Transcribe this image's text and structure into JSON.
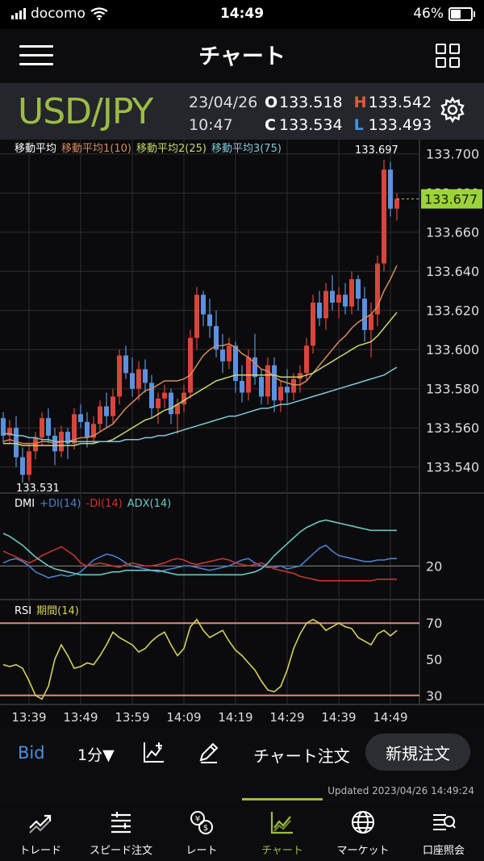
{
  "status_bar": {
    "carrier": "docomo",
    "time": "14:49",
    "battery": "46%",
    "battery_level": 0.46
  },
  "header": {
    "title": "チャート"
  },
  "quote": {
    "pair": "USD/JPY",
    "date": "23/04/26",
    "time": "10:47",
    "open_label": "O",
    "open": "133.518",
    "high_label": "H",
    "high": "133.542",
    "close_label": "C",
    "close": "133.534",
    "low_label": "L",
    "low": "133.493"
  },
  "chart_data": [
    {
      "type": "candlestick",
      "title": "移動平均",
      "legend": [
        "移動平均1(10)",
        "移動平均2(25)",
        "移動平均3(75)"
      ],
      "y_ticks": [
        "133.700",
        "133.680",
        "133.660",
        "133.640",
        "133.620",
        "133.600",
        "133.580",
        "133.560",
        "133.540"
      ],
      "ylim": [
        133.53,
        133.704
      ],
      "current_price": "133.677",
      "max_label": "133.697",
      "min_label": "133.531",
      "x_ticks": [
        "13:39",
        "13:49",
        "13:59",
        "14:09",
        "14:19",
        "14:29",
        "14:39",
        "14:49"
      ],
      "candles": [
        [
          133.565,
          133.568,
          133.552,
          133.556
        ],
        [
          133.556,
          133.564,
          133.552,
          133.56
        ],
        [
          133.56,
          133.566,
          133.54,
          133.545
        ],
        [
          133.545,
          133.55,
          133.532,
          133.536
        ],
        [
          133.536,
          133.552,
          133.533,
          133.548
        ],
        [
          133.548,
          133.558,
          133.544,
          133.555
        ],
        [
          133.555,
          133.568,
          133.551,
          133.565
        ],
        [
          133.565,
          133.57,
          133.552,
          133.556
        ],
        [
          133.556,
          133.56,
          133.541,
          133.548
        ],
        [
          133.548,
          133.561,
          133.545,
          133.558
        ],
        [
          133.558,
          133.56,
          133.544,
          133.552
        ],
        [
          133.552,
          133.57,
          133.549,
          133.567
        ],
        [
          133.567,
          133.572,
          133.56,
          133.563
        ],
        [
          133.563,
          133.568,
          133.55,
          133.555
        ],
        [
          133.555,
          133.566,
          133.552,
          133.562
        ],
        [
          133.562,
          133.574,
          133.558,
          133.571
        ],
        [
          133.571,
          133.578,
          133.56,
          133.566
        ],
        [
          133.566,
          133.58,
          133.562,
          133.576
        ],
        [
          133.576,
          133.6,
          133.572,
          133.597
        ],
        [
          133.597,
          133.602,
          133.585,
          133.588
        ],
        [
          133.588,
          133.596,
          133.576,
          133.58
        ],
        [
          133.58,
          133.594,
          133.574,
          133.59
        ],
        [
          133.59,
          133.595,
          133.578,
          133.583
        ],
        [
          133.583,
          133.587,
          133.565,
          133.57
        ],
        [
          133.57,
          133.578,
          133.562,
          133.575
        ],
        [
          133.575,
          133.582,
          133.57,
          133.578
        ],
        [
          133.578,
          133.58,
          133.562,
          133.567
        ],
        [
          133.567,
          133.575,
          133.557,
          133.572
        ],
        [
          133.572,
          133.582,
          133.568,
          133.578
        ],
        [
          133.578,
          133.61,
          133.575,
          133.606
        ],
        [
          133.606,
          133.632,
          133.6,
          133.628
        ],
        [
          133.628,
          133.63,
          133.612,
          133.618
        ],
        [
          133.618,
          133.626,
          133.606,
          133.612
        ],
        [
          133.612,
          133.62,
          133.596,
          133.6
        ],
        [
          133.6,
          133.608,
          133.588,
          133.594
        ],
        [
          133.594,
          133.606,
          133.59,
          133.602
        ],
        [
          133.602,
          133.604,
          133.578,
          133.584
        ],
        [
          133.584,
          133.592,
          133.573,
          133.578
        ],
        [
          133.578,
          133.6,
          133.574,
          133.596
        ],
        [
          133.596,
          133.608,
          133.582,
          133.586
        ],
        [
          133.586,
          133.59,
          133.572,
          133.576
        ],
        [
          133.576,
          133.596,
          133.572,
          133.592
        ],
        [
          133.592,
          133.596,
          133.568,
          133.574
        ],
        [
          133.574,
          133.584,
          133.568,
          133.581
        ],
        [
          133.581,
          133.59,
          133.572,
          133.578
        ],
        [
          133.578,
          133.588,
          133.574,
          133.585
        ],
        [
          133.585,
          133.592,
          133.578,
          133.588
        ],
        [
          133.588,
          133.606,
          133.584,
          133.602
        ],
        [
          133.602,
          133.628,
          133.598,
          133.624
        ],
        [
          133.624,
          133.63,
          133.612,
          133.616
        ],
        [
          133.616,
          133.634,
          133.61,
          133.63
        ],
        [
          133.63,
          133.638,
          133.62,
          133.624
        ],
        [
          133.624,
          133.632,
          133.616,
          133.628
        ],
        [
          133.628,
          133.634,
          133.618,
          133.622
        ],
        [
          133.622,
          133.64,
          133.618,
          133.636
        ],
        [
          133.636,
          133.638,
          133.62,
          133.626
        ],
        [
          133.626,
          133.632,
          133.604,
          133.61
        ],
        [
          133.61,
          133.624,
          133.596,
          133.618
        ],
        [
          133.618,
          133.648,
          133.612,
          133.644
        ],
        [
          133.644,
          133.697,
          133.64,
          133.692
        ],
        [
          133.692,
          133.696,
          133.668,
          133.672
        ],
        [
          133.672,
          133.68,
          133.666,
          133.677
        ]
      ],
      "ma_series": [
        {
          "name": "移動平均1(10)",
          "color": "#d98a5a",
          "values": [
            133.553,
            133.554,
            133.553,
            133.552,
            133.552,
            133.552,
            133.553,
            133.553,
            133.552,
            133.553,
            133.553,
            133.554,
            133.555,
            133.555,
            133.556,
            133.558,
            133.56,
            133.562,
            133.566,
            133.57,
            133.573,
            133.576,
            133.579,
            133.58,
            133.582,
            133.584,
            133.584,
            133.584,
            133.585,
            133.587,
            133.592,
            133.597,
            133.6,
            133.602,
            133.602,
            133.603,
            133.601,
            133.598,
            133.596,
            133.593,
            133.59,
            133.589,
            133.586,
            133.584,
            133.583,
            133.582,
            133.582,
            133.584,
            133.588,
            133.592,
            133.596,
            133.6,
            133.604,
            133.607,
            133.611,
            133.614,
            133.616,
            133.618,
            133.622,
            133.63,
            133.636,
            133.643
          ]
        },
        {
          "name": "移動平均2(25)",
          "color": "#c7d96a",
          "values": [
            133.552,
            133.552,
            133.552,
            133.551,
            133.551,
            133.551,
            133.551,
            133.551,
            133.551,
            133.551,
            133.551,
            133.551,
            133.552,
            133.552,
            133.552,
            133.553,
            133.553,
            133.554,
            133.556,
            133.558,
            133.56,
            133.562,
            133.564,
            133.565,
            133.567,
            133.569,
            133.57,
            133.572,
            133.574,
            133.576,
            133.578,
            133.58,
            133.582,
            133.584,
            133.585,
            133.586,
            133.587,
            133.587,
            133.587,
            133.587,
            133.587,
            133.587,
            133.587,
            133.586,
            133.586,
            133.586,
            133.586,
            133.587,
            133.588,
            133.59,
            133.592,
            133.594,
            133.596,
            133.598,
            133.6,
            133.602,
            133.603,
            133.604,
            133.607,
            133.611,
            133.615,
            133.619
          ]
        },
        {
          "name": "移動平均3(75)",
          "color": "#7ec8d6",
          "values": [
            133.557,
            133.557,
            133.556,
            133.556,
            133.555,
            133.555,
            133.554,
            133.554,
            133.553,
            133.553,
            133.553,
            133.553,
            133.553,
            133.553,
            133.553,
            133.553,
            133.553,
            133.553,
            133.553,
            133.554,
            133.554,
            133.554,
            133.555,
            133.555,
            133.556,
            133.556,
            133.557,
            133.558,
            133.559,
            133.56,
            133.561,
            133.562,
            133.563,
            133.564,
            133.565,
            133.566,
            133.566,
            133.567,
            133.568,
            133.569,
            133.57,
            133.57,
            133.571,
            133.572,
            133.572,
            133.573,
            133.574,
            133.575,
            133.576,
            133.577,
            133.578,
            133.579,
            133.58,
            133.581,
            133.582,
            133.583,
            133.584,
            133.585,
            133.586,
            133.587,
            133.589,
            133.591
          ]
        }
      ]
    },
    {
      "type": "line",
      "title": "DMI",
      "legend": [
        "+DI(14)",
        "-DI(14)",
        "ADX(14)"
      ],
      "y_ticks": [
        "20"
      ],
      "ylim": [
        0,
        60
      ],
      "series": [
        {
          "name": "+DI(14)",
          "color": "#4a80d0",
          "values": [
            22,
            24,
            25,
            23,
            20,
            16,
            14,
            12,
            13,
            14,
            13,
            14,
            16,
            20,
            24,
            26,
            28,
            27,
            25,
            22,
            20,
            19,
            18,
            17,
            16,
            17,
            18,
            19,
            20,
            20,
            19,
            18,
            17,
            18,
            19,
            20,
            22,
            24,
            25,
            22,
            20,
            19,
            19,
            20,
            18,
            19,
            20,
            24,
            28,
            32,
            34,
            30,
            27,
            26,
            25,
            24,
            23,
            23,
            24,
            24,
            25,
            25
          ]
        },
        {
          "name": "-DI(14)",
          "color": "#c8352e",
          "values": [
            30,
            28,
            26,
            24,
            22,
            24,
            27,
            29,
            31,
            33,
            30,
            27,
            22,
            20,
            21,
            22,
            21,
            20,
            19,
            21,
            22,
            21,
            20,
            20,
            21,
            22,
            24,
            25,
            24,
            22,
            21,
            22,
            23,
            24,
            25,
            24,
            22,
            21,
            20,
            21,
            22,
            20,
            18,
            17,
            16,
            15,
            13,
            12,
            11,
            10,
            10,
            10,
            10,
            10,
            10,
            10,
            10,
            10,
            11,
            11,
            11,
            11
          ]
        },
        {
          "name": "ADX(14)",
          "color": "#6cc6c0",
          "values": [
            42,
            40,
            37,
            34,
            30,
            26,
            23,
            20,
            18,
            17,
            16,
            15,
            14,
            14,
            14,
            14,
            15,
            16,
            16,
            17,
            17,
            17,
            17,
            17,
            17,
            16,
            15,
            14,
            14,
            14,
            14,
            14,
            14,
            14,
            14,
            14,
            14,
            14,
            15,
            16,
            18,
            22,
            27,
            31,
            35,
            39,
            43,
            46,
            48,
            50,
            51,
            50,
            49,
            48,
            47,
            46,
            45,
            44,
            44,
            44,
            44,
            44
          ]
        }
      ]
    },
    {
      "type": "line",
      "title": "RSI",
      "legend": [
        "期間(14)"
      ],
      "y_ticks": [
        "70",
        "50",
        "30"
      ],
      "ylim": [
        25,
        75
      ],
      "levels": [
        70,
        30
      ],
      "series": [
        {
          "name": "期間(14)",
          "color": "#d4d05a",
          "values": [
            47,
            46,
            47,
            45,
            38,
            30,
            28,
            35,
            50,
            58,
            52,
            45,
            46,
            48,
            47,
            52,
            58,
            65,
            62,
            60,
            58,
            54,
            56,
            60,
            63,
            65,
            58,
            52,
            56,
            68,
            72,
            66,
            62,
            64,
            66,
            60,
            55,
            52,
            48,
            44,
            38,
            33,
            32,
            35,
            44,
            56,
            64,
            70,
            72,
            70,
            66,
            68,
            70,
            68,
            67,
            62,
            60,
            58,
            64,
            66,
            63,
            66
          ]
        }
      ]
    }
  ],
  "toolbar": {
    "bid": "Bid",
    "timeframe": "1分▼",
    "chart_order": "チャート注文",
    "new_order": "新規注文"
  },
  "updated": "Updated 2023/04/26 14:49:24",
  "tabs": [
    {
      "label": "トレード",
      "icon": "trend-arrow-icon"
    },
    {
      "label": "スピード注文",
      "icon": "speed-order-icon"
    },
    {
      "label": "レート",
      "icon": "currency-rate-icon"
    },
    {
      "label": "チャート",
      "icon": "chart-icon",
      "active": true
    },
    {
      "label": "マーケット",
      "icon": "globe-icon"
    },
    {
      "label": "口座照会",
      "icon": "account-inquiry-icon"
    }
  ]
}
